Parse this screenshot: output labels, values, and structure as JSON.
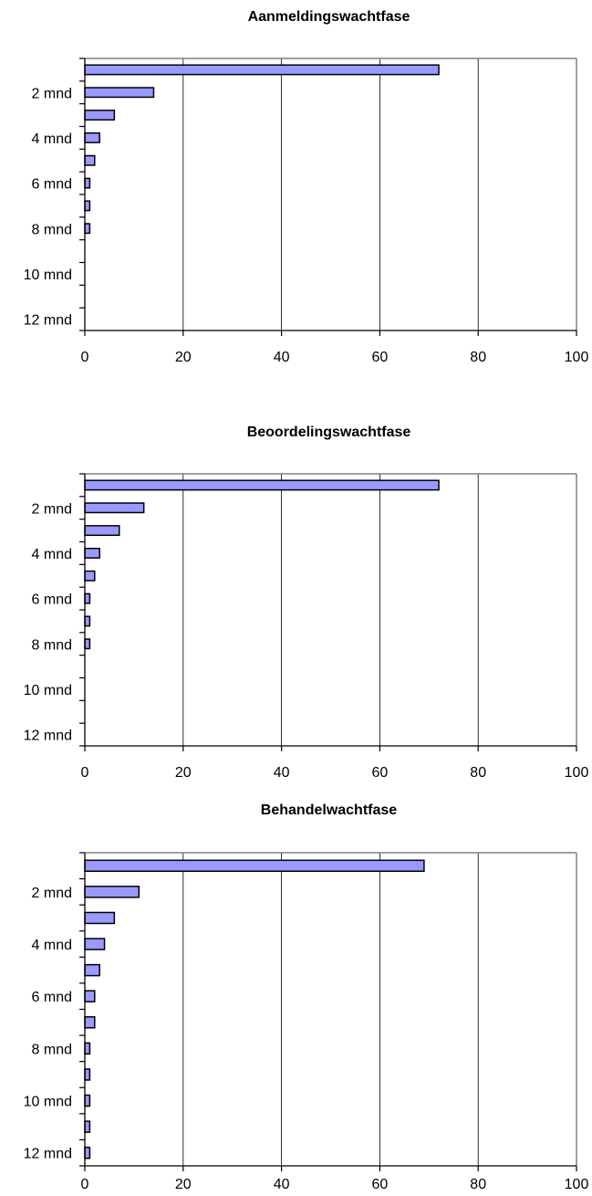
{
  "chart_data": [
    {
      "type": "bar",
      "orientation": "horizontal",
      "title": "Aanmeldingswachtfase",
      "categories": [
        "",
        "2 mnd",
        "",
        "4 mnd",
        "",
        "6 mnd",
        "",
        "8 mnd",
        "",
        "10 mnd",
        "",
        "12 mnd"
      ],
      "values": [
        72,
        14,
        6,
        3,
        2,
        1,
        1,
        1,
        0,
        0,
        0,
        0
      ],
      "xlim": [
        0,
        100
      ],
      "xticks": [
        0,
        20,
        40,
        60,
        80,
        100
      ],
      "grid": "vertical",
      "bar_color": "#9999ff"
    },
    {
      "type": "bar",
      "orientation": "horizontal",
      "title": "Beoordelingswachtfase",
      "categories": [
        "",
        "2 mnd",
        "",
        "4 mnd",
        "",
        "6 mnd",
        "",
        "8 mnd",
        "",
        "10 mnd",
        "",
        "12 mnd"
      ],
      "values": [
        72,
        12,
        7,
        3,
        2,
        1,
        1,
        1,
        0,
        0,
        0,
        0
      ],
      "xlim": [
        0,
        100
      ],
      "xticks": [
        0,
        20,
        40,
        60,
        80,
        100
      ],
      "grid": "vertical",
      "bar_color": "#9999ff"
    },
    {
      "type": "bar",
      "orientation": "horizontal",
      "title": "Behandelwachtfase",
      "categories": [
        "",
        "2 mnd",
        "",
        "4 mnd",
        "",
        "6 mnd",
        "",
        "8 mnd",
        "",
        "10 mnd",
        "",
        "12 mnd"
      ],
      "values": [
        69,
        11,
        6,
        4,
        3,
        2,
        2,
        1,
        1,
        1,
        1,
        1
      ],
      "xlim": [
        0,
        100
      ],
      "xticks": [
        0,
        20,
        40,
        60,
        80,
        100
      ],
      "grid": "vertical",
      "bar_color": "#9999ff"
    }
  ]
}
